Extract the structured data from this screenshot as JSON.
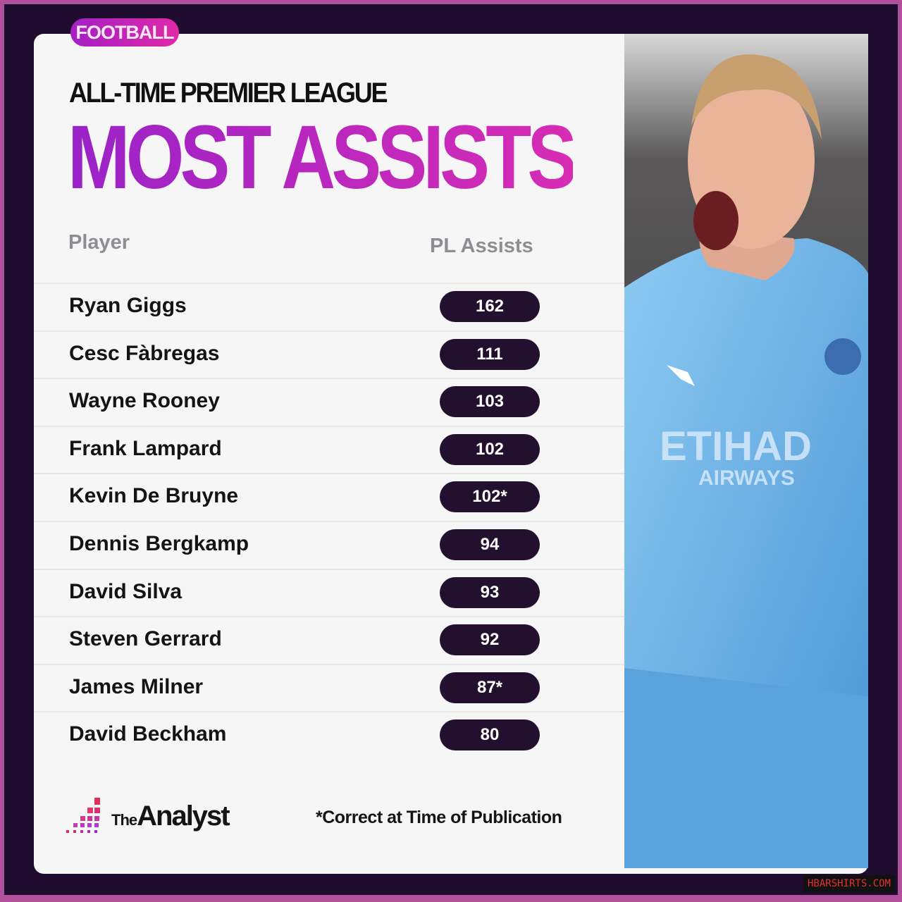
{
  "category_tag": "FOOTBALL",
  "subtitle": "ALL-TIME PREMIER LEAGUE",
  "title": "MOST ASSISTS",
  "table": {
    "columns": [
      "Player",
      "PL Assists"
    ],
    "rows": [
      {
        "player": "Ryan Giggs",
        "assists": "162"
      },
      {
        "player": "Cesc Fàbregas",
        "assists": "111"
      },
      {
        "player": "Wayne Rooney",
        "assists": "103"
      },
      {
        "player": "Frank Lampard",
        "assists": "102"
      },
      {
        "player": "Kevin De Bruyne",
        "assists": "102*"
      },
      {
        "player": "Dennis Bergkamp",
        "assists": "94"
      },
      {
        "player": "David Silva",
        "assists": "93"
      },
      {
        "player": "Steven Gerrard",
        "assists": "92"
      },
      {
        "player": "James Milner",
        "assists": "87*"
      },
      {
        "player": "David Beckham",
        "assists": "80"
      }
    ]
  },
  "footer": {
    "brand_the": "The",
    "brand_name": "Analyst",
    "footnote": "*Correct at Time of Publication"
  },
  "photo": {
    "sponsor_line1": "ETIHAD",
    "sponsor_line2": "AIRWAYS"
  },
  "watermark": "HBARSHIRTS.COM",
  "colors": {
    "border": "#b0509a",
    "background": "#1e0b2e",
    "accent": "#b62bc4",
    "pill": "#22102e",
    "jersey": "#6fb4e6"
  }
}
